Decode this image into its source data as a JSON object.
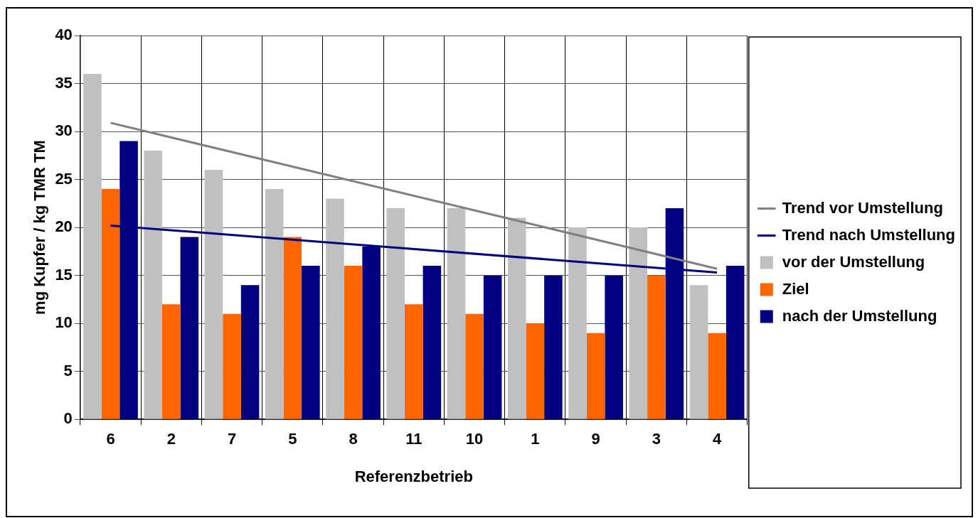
{
  "chart_data": {
    "type": "bar",
    "xlabel": "Referenzbetrieb",
    "ylabel": "mg Kupfer / kg TMR TM",
    "categories": [
      "6",
      "2",
      "7",
      "5",
      "8",
      "11",
      "10",
      "1",
      "9",
      "3",
      "4"
    ],
    "series": [
      {
        "name": "vor der Umstellung",
        "color": "#c0c0c0",
        "values": [
          36,
          28,
          26,
          24,
          23,
          22,
          22,
          21,
          20,
          20,
          14
        ]
      },
      {
        "name": "Ziel",
        "color": "#ff6600",
        "values": [
          24,
          12,
          11,
          19,
          16,
          12,
          11,
          10,
          9,
          15,
          9
        ]
      },
      {
        "name": "nach der Umstellung",
        "color": "#000080",
        "values": [
          29,
          19,
          14,
          16,
          18,
          16,
          15,
          15,
          15,
          22,
          16
        ]
      },
      {
        "name": "Trend vor Umstellung",
        "type": "line",
        "color": "#808080",
        "values": [
          30.9,
          null,
          null,
          null,
          null,
          null,
          null,
          null,
          null,
          null,
          15.7
        ]
      },
      {
        "name": "Trend nach Umstellung",
        "type": "line",
        "color": "#000080",
        "values": [
          20.2,
          null,
          null,
          null,
          null,
          null,
          null,
          null,
          null,
          null,
          15.3
        ]
      }
    ],
    "ylim": [
      0,
      40
    ],
    "yticks": [
      0,
      5,
      10,
      15,
      20,
      25,
      30,
      35,
      40
    ],
    "grid": true,
    "legend": "right",
    "marker": "none",
    "line_style": "solid"
  }
}
